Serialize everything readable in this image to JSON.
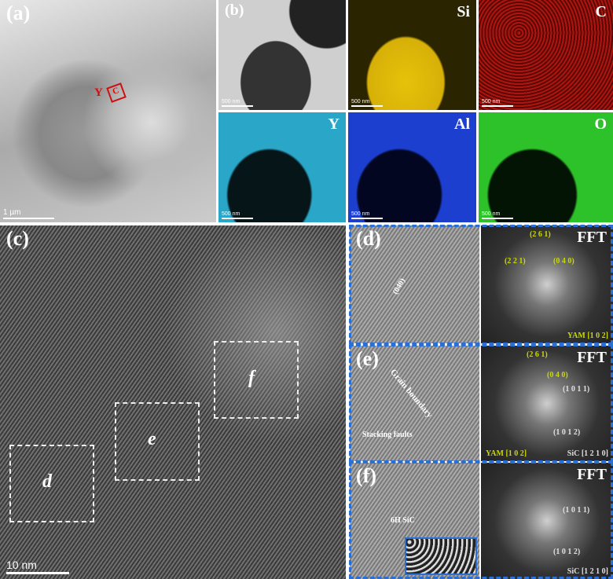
{
  "panel_a": {
    "label": "(a)",
    "scale": "1 µm",
    "marks": [
      "Y",
      "C"
    ]
  },
  "panel_b": {
    "label": "(b)",
    "maps": [
      {
        "element": "Si",
        "scale": "500 nm",
        "color": "#e6c20a"
      },
      {
        "element": "C",
        "scale": "500 nm",
        "color": "#c21a12"
      },
      {
        "element": "Y",
        "scale": "500 nm",
        "color": "#2aa6c8"
      },
      {
        "element": "Al",
        "scale": "500 nm",
        "color": "#1c3fd0"
      },
      {
        "element": "O",
        "scale": "500 nm",
        "color": "#2ec22a"
      }
    ],
    "haadf_scale": "500 nm"
  },
  "panel_c": {
    "label": "(c)",
    "scale": "10 nm",
    "boxes": [
      "d",
      "e",
      "f"
    ]
  },
  "panel_d": {
    "label": "(d)",
    "plane": "(040)",
    "fft": {
      "title": "FFT",
      "spots": [
        "(2 6 1)",
        "(2 2 1)",
        "(0 4 0)"
      ],
      "zone": "YAM [1 0 2]"
    }
  },
  "panel_e": {
    "label": "(e)",
    "annotations": [
      "Grain boundary",
      "Stacking faults"
    ],
    "fft": {
      "title": "FFT",
      "spots": [
        "(2 6 1)",
        "(0 4 0)",
        "(1 0 1 1)",
        "(1 0 1 2)"
      ],
      "zones": [
        "YAM [1 0 2]",
        "SiC [1 2 1 0]"
      ]
    }
  },
  "panel_f": {
    "label": "(f)",
    "annotation": "6H SiC",
    "fft": {
      "title": "FFT",
      "spots": [
        "(1 0 1 1)",
        "(1 0 1 2)"
      ],
      "zone": "SiC [1 2 1 0]"
    }
  }
}
